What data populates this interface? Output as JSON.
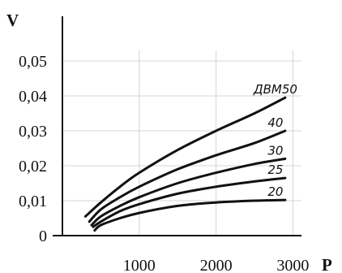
{
  "chart_data": {
    "type": "line",
    "title": "",
    "xlabel": "P",
    "ylabel": "V",
    "xlim": [
      0,
      3500
    ],
    "ylim": [
      0,
      0.055
    ],
    "x_ticks": [
      "1000",
      "2000",
      "3000"
    ],
    "y_ticks": [
      "0",
      "0,01",
      "0,02",
      "0,03",
      "0,04",
      "0,05"
    ],
    "grid": true,
    "series": [
      {
        "name": "ДВМ50",
        "color": "#111111",
        "points": [
          [
            300,
            0.0055
          ],
          [
            500,
            0.0095
          ],
          [
            750,
            0.014
          ],
          [
            1000,
            0.018
          ],
          [
            1500,
            0.0245
          ],
          [
            2000,
            0.03
          ],
          [
            2500,
            0.035
          ],
          [
            2900,
            0.0395
          ]
        ]
      },
      {
        "name": "40",
        "color": "#111111",
        "points": [
          [
            350,
            0.004
          ],
          [
            500,
            0.0075
          ],
          [
            750,
            0.011
          ],
          [
            1000,
            0.014
          ],
          [
            1500,
            0.019
          ],
          [
            2000,
            0.023
          ],
          [
            2500,
            0.0265
          ],
          [
            2900,
            0.03
          ]
        ]
      },
      {
        "name": "30",
        "color": "#111111",
        "points": [
          [
            380,
            0.003
          ],
          [
            500,
            0.0055
          ],
          [
            750,
            0.0085
          ],
          [
            1000,
            0.011
          ],
          [
            1500,
            0.015
          ],
          [
            2000,
            0.018
          ],
          [
            2500,
            0.0205
          ],
          [
            2900,
            0.022
          ]
        ]
      },
      {
        "name": "25",
        "color": "#111111",
        "points": [
          [
            400,
            0.0025
          ],
          [
            500,
            0.004
          ],
          [
            750,
            0.007
          ],
          [
            1000,
            0.009
          ],
          [
            1500,
            0.012
          ],
          [
            2000,
            0.014
          ],
          [
            2500,
            0.0155
          ],
          [
            2900,
            0.0165
          ]
        ]
      },
      {
        "name": "20",
        "color": "#111111",
        "points": [
          [
            420,
            0.0015
          ],
          [
            500,
            0.003
          ],
          [
            750,
            0.005
          ],
          [
            1000,
            0.0065
          ],
          [
            1500,
            0.0085
          ],
          [
            2000,
            0.0095
          ],
          [
            2500,
            0.01
          ],
          [
            2900,
            0.0102
          ]
        ]
      }
    ]
  }
}
